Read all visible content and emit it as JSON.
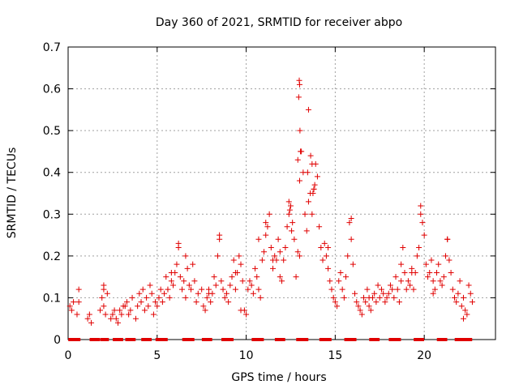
{
  "chart_data": {
    "type": "scatter",
    "title": "Day 360 of 2021, SRMTID for receiver abpo",
    "xlabel": "GPS time / hours",
    "ylabel": "SRMTID / TECUs",
    "xlim": [
      0,
      24
    ],
    "ylim": [
      0,
      0.7
    ],
    "xticks": [
      0,
      5,
      10,
      15,
      20
    ],
    "yticks": [
      0,
      0.1,
      0.2,
      0.3,
      0.4,
      0.5,
      0.6,
      0.7
    ],
    "xtick_labels": [
      "0",
      "5",
      "10",
      "15",
      "20"
    ],
    "ytick_labels": [
      "0",
      "0.1",
      "0.2",
      "0.3",
      "0.4",
      "0.5",
      "0.6",
      "0.7"
    ],
    "grid": true,
    "marker": "plus",
    "marker_color": "#e00000",
    "zero_markers": "square",
    "zero_line_hours": [
      [
        0.1,
        0.6
      ],
      [
        1.3,
        1.7
      ],
      [
        1.9,
        2.2
      ],
      [
        2.6,
        3.0
      ],
      [
        3.3,
        3.7
      ],
      [
        4.2,
        4.6
      ],
      [
        5.0,
        5.5
      ],
      [
        6.5,
        7.0
      ],
      [
        7.6,
        8.0
      ],
      [
        8.7,
        9.2
      ],
      [
        10.4,
        10.9
      ],
      [
        11.7,
        12.1
      ],
      [
        12.9,
        13.4
      ],
      [
        14.2,
        14.7
      ],
      [
        15.6,
        16.1
      ],
      [
        17.0,
        17.4
      ],
      [
        18.1,
        18.6
      ],
      [
        19.5,
        19.9
      ],
      [
        20.8,
        21.2
      ],
      [
        21.8,
        22.6
      ]
    ],
    "series": [
      {
        "name": "SRMTID",
        "x": [
          0.1,
          0.2,
          0.3,
          0.5,
          0.6,
          0.6,
          1.1,
          1.2,
          1.3,
          1.8,
          1.9,
          2.0,
          2.0,
          2.1,
          2.2,
          2.4,
          2.5,
          2.6,
          2.7,
          2.8,
          2.9,
          3.0,
          3.1,
          3.3,
          3.4,
          3.5,
          3.6,
          3.8,
          3.9,
          4.0,
          4.1,
          4.2,
          4.3,
          4.4,
          4.5,
          4.6,
          4.7,
          4.8,
          4.9,
          5.0,
          5.1,
          5.2,
          5.3,
          5.4,
          5.5,
          5.6,
          5.7,
          5.8,
          5.9,
          6.0,
          6.1,
          6.2,
          6.3,
          6.4,
          6.5,
          6.6,
          6.7,
          6.8,
          6.9,
          7.0,
          7.1,
          7.2,
          7.3,
          7.5,
          7.6,
          7.7,
          7.8,
          7.9,
          8.0,
          8.1,
          8.2,
          8.3,
          8.4,
          8.5,
          8.6,
          8.7,
          8.8,
          8.9,
          9.0,
          9.1,
          9.2,
          9.3,
          9.4,
          9.5,
          9.6,
          9.7,
          9.8,
          9.9,
          10.0,
          10.1,
          10.2,
          10.3,
          10.4,
          10.5,
          10.6,
          10.7,
          10.8,
          10.9,
          11.0,
          11.1,
          11.2,
          11.3,
          11.4,
          11.5,
          11.6,
          11.7,
          11.8,
          11.9,
          12.0,
          12.1,
          12.2,
          12.3,
          12.4,
          12.5,
          12.6,
          12.7,
          12.8,
          12.9,
          13.0,
          13.0,
          13.1,
          13.2,
          13.3,
          13.4,
          13.5,
          13.6,
          13.7,
          13.8,
          13.9,
          14.0,
          14.1,
          14.2,
          14.3,
          14.4,
          14.5,
          14.6,
          14.7,
          14.8,
          14.9,
          15.0,
          15.1,
          15.2,
          15.3,
          15.4,
          15.5,
          15.6,
          15.7,
          15.8,
          15.9,
          16.0,
          16.1,
          16.2,
          16.3,
          16.4,
          16.5,
          16.6,
          16.7,
          16.8,
          16.9,
          17.0,
          17.1,
          17.2,
          17.3,
          17.4,
          17.5,
          17.6,
          17.7,
          17.8,
          17.9,
          18.0,
          18.1,
          18.2,
          18.3,
          18.4,
          18.5,
          18.6,
          18.7,
          18.8,
          18.9,
          19.0,
          19.1,
          19.2,
          19.3,
          19.4,
          19.5,
          19.6,
          19.7,
          19.8,
          19.9,
          20.0,
          20.1,
          20.2,
          20.3,
          20.4,
          20.5,
          20.6,
          20.7,
          20.8,
          20.9,
          21.0,
          21.1,
          21.2,
          21.3,
          21.4,
          21.5,
          21.6,
          21.7,
          21.8,
          21.9,
          22.0,
          22.1,
          22.2,
          22.3,
          22.4,
          22.5,
          22.6,
          22.7,
          12.9,
          13.0,
          13.5,
          13.7,
          13.8,
          15.9,
          19.8,
          8.5,
          2.0,
          3.2,
          5.8,
          6.6,
          9.7,
          11.1,
          11.9,
          12.4,
          14.6,
          16.9,
          18.7,
          19.3,
          20.5,
          21.3,
          22.2,
          12.95,
          12.98,
          13.02,
          13.05,
          13.45,
          13.62,
          13.75,
          13.85,
          12.55,
          12.45,
          11.5,
          10.7,
          9.4,
          7.9,
          6.2
        ],
        "y": [
          0.08,
          0.07,
          0.09,
          0.06,
          0.12,
          0.09,
          0.05,
          0.06,
          0.04,
          0.07,
          0.1,
          0.12,
          0.08,
          0.06,
          0.11,
          0.05,
          0.06,
          0.07,
          0.05,
          0.04,
          0.07,
          0.06,
          0.08,
          0.09,
          0.06,
          0.07,
          0.1,
          0.05,
          0.08,
          0.11,
          0.09,
          0.12,
          0.07,
          0.1,
          0.08,
          0.13,
          0.11,
          0.06,
          0.09,
          0.08,
          0.1,
          0.12,
          0.09,
          0.11,
          0.15,
          0.12,
          0.1,
          0.14,
          0.13,
          0.16,
          0.18,
          0.22,
          0.15,
          0.12,
          0.14,
          0.1,
          0.17,
          0.13,
          0.12,
          0.18,
          0.14,
          0.09,
          0.11,
          0.12,
          0.08,
          0.07,
          0.1,
          0.12,
          0.09,
          0.11,
          0.15,
          0.13,
          0.2,
          0.25,
          0.14,
          0.12,
          0.1,
          0.11,
          0.09,
          0.13,
          0.15,
          0.19,
          0.12,
          0.16,
          0.2,
          0.18,
          0.14,
          0.07,
          0.06,
          0.12,
          0.14,
          0.13,
          0.11,
          0.17,
          0.15,
          0.12,
          0.1,
          0.19,
          0.21,
          0.25,
          0.27,
          0.3,
          0.22,
          0.17,
          0.2,
          0.19,
          0.24,
          0.21,
          0.14,
          0.19,
          0.22,
          0.27,
          0.3,
          0.32,
          0.28,
          0.24,
          0.15,
          0.21,
          0.2,
          0.38,
          0.45,
          0.4,
          0.3,
          0.26,
          0.33,
          0.35,
          0.3,
          0.36,
          0.42,
          0.39,
          0.27,
          0.22,
          0.19,
          0.23,
          0.2,
          0.17,
          0.14,
          0.12,
          0.1,
          0.09,
          0.08,
          0.14,
          0.16,
          0.12,
          0.1,
          0.15,
          0.2,
          0.28,
          0.24,
          0.18,
          0.11,
          0.09,
          0.08,
          0.07,
          0.06,
          0.1,
          0.09,
          0.12,
          0.08,
          0.07,
          0.1,
          0.11,
          0.09,
          0.13,
          0.1,
          0.12,
          0.11,
          0.09,
          0.1,
          0.11,
          0.13,
          0.12,
          0.1,
          0.15,
          0.12,
          0.09,
          0.18,
          0.22,
          0.16,
          0.12,
          0.14,
          0.13,
          0.17,
          0.12,
          0.16,
          0.2,
          0.22,
          0.3,
          0.28,
          0.25,
          0.18,
          0.15,
          0.16,
          0.19,
          0.14,
          0.12,
          0.16,
          0.18,
          0.14,
          0.13,
          0.15,
          0.2,
          0.24,
          0.19,
          0.16,
          0.12,
          0.1,
          0.09,
          0.11,
          0.14,
          0.08,
          0.1,
          0.07,
          0.06,
          0.13,
          0.11,
          0.09,
          0.43,
          0.61,
          0.55,
          0.42,
          0.36,
          0.29,
          0.32,
          0.24,
          0.13,
          0.08,
          0.16,
          0.2,
          0.07,
          0.28,
          0.15,
          0.33,
          0.22,
          0.1,
          0.14,
          0.16,
          0.11,
          0.24,
          0.05,
          0.58,
          0.62,
          0.5,
          0.45,
          0.4,
          0.44,
          0.35,
          0.37,
          0.26,
          0.31,
          0.19,
          0.24,
          0.16,
          0.11,
          0.23
        ]
      }
    ]
  }
}
